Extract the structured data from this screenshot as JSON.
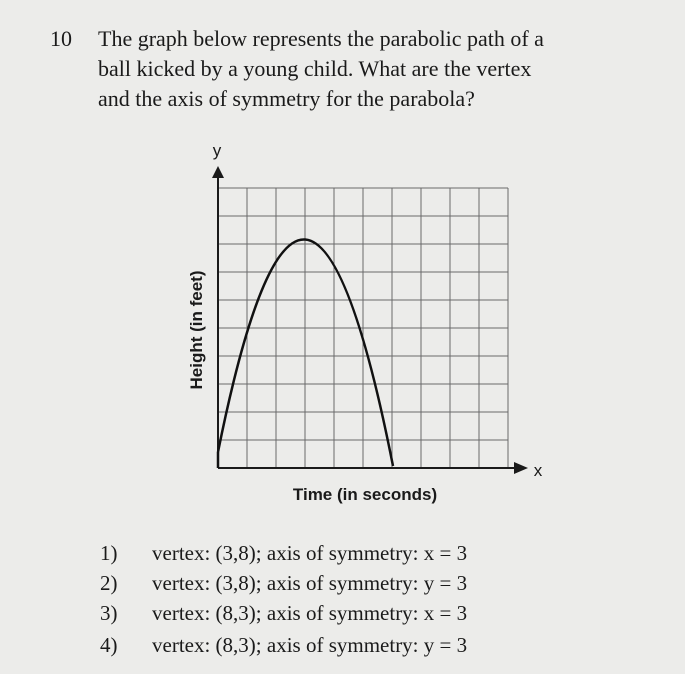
{
  "question": {
    "number": "10",
    "lines": [
      "The graph below represents the parabolic path of a",
      "ball kicked by a young child.  What are the vertex",
      "and the axis of symmetry for the parabola?"
    ]
  },
  "graph": {
    "y_axis_letter": "y",
    "x_axis_letter": "x",
    "y_axis_title": "Height (in feet)",
    "x_axis_title": "Time (in seconds)"
  },
  "choices": [
    {
      "number": "1)",
      "text": "vertex: (3,8); axis of symmetry: x = 3"
    },
    {
      "number": "2)",
      "text": "vertex: (3,8); axis of symmetry: y = 3"
    },
    {
      "number": "3)",
      "text": "vertex: (8,3); axis of symmetry: x = 3"
    },
    {
      "number": "4)",
      "text": "vertex: (8,3); axis of symmetry: y = 3"
    }
  ]
}
